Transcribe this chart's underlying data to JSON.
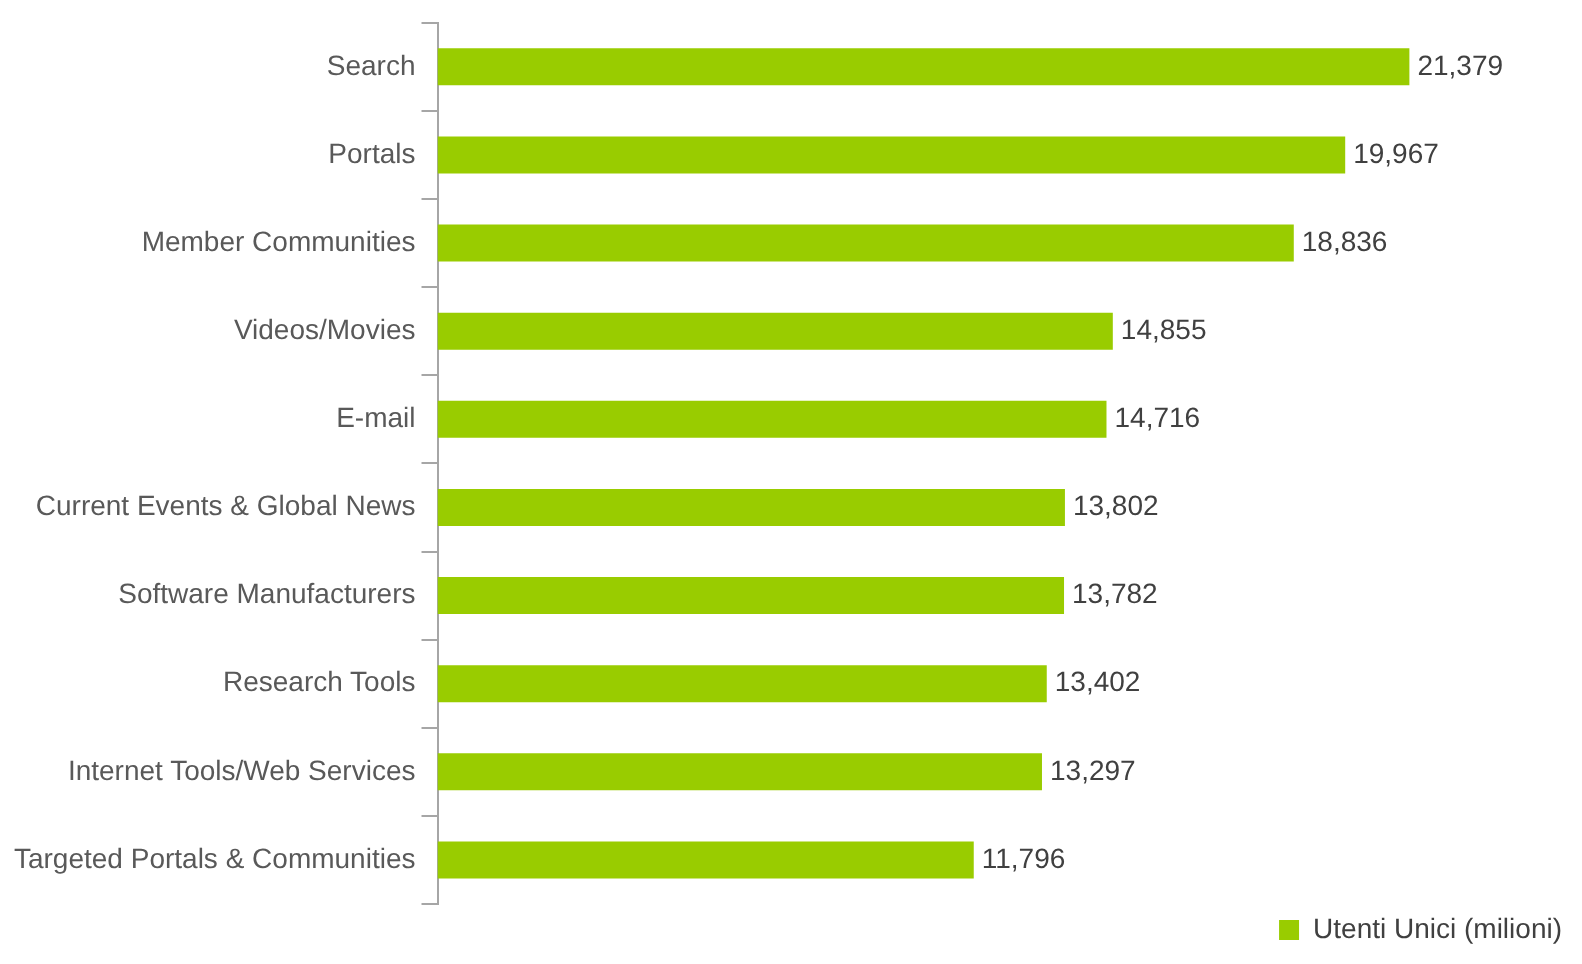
{
  "chart_data": {
    "type": "bar",
    "orientation": "horizontal",
    "categories": [
      "Search",
      "Portals",
      "Member Communities",
      "Videos/Movies",
      "E-mail",
      "Current Events & Global News",
      "Software Manufacturers",
      "Research Tools",
      "Internet Tools/Web Services",
      "Targeted Portals & Communities"
    ],
    "series": [
      {
        "name": "Utenti Unici (milioni)",
        "color": "#99cc00",
        "values": [
          21379,
          19967,
          18836,
          14855,
          14716,
          13802,
          13782,
          13402,
          13297,
          11796
        ],
        "value_labels": [
          "21,379",
          "19,967",
          "18,836",
          "14,855",
          "14,716",
          "13,802",
          "13,782",
          "13,402",
          "13,297",
          "11,796"
        ]
      }
    ],
    "legend": "bottom right",
    "tick_labels": "y"
  }
}
